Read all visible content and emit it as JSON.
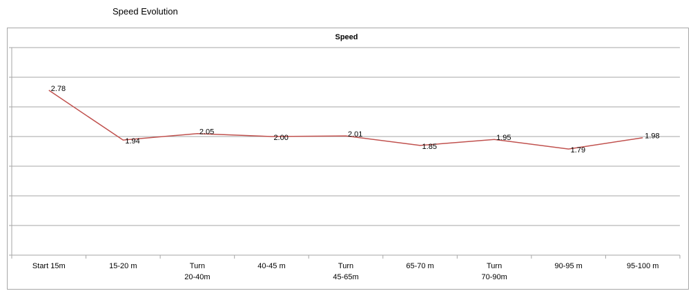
{
  "heading": "Speed Evolution",
  "chart_data": {
    "type": "line",
    "title": "Speed",
    "categories": [
      "Start 15m",
      "15-20 m",
      "Turn\n20-40m",
      "40-45 m",
      "Turn\n45-65m",
      "65-70 m",
      "Turn\n70-90m",
      "90-95 m",
      "95-100 m"
    ],
    "values": [
      2.78,
      1.94,
      2.05,
      2,
      2.01,
      1.85,
      1.95,
      1.79,
      1.98
    ],
    "value_labels": [
      "2.78",
      "1.94",
      "2.05",
      "2.00",
      "2.01",
      "1.85",
      "1.95",
      "1.79",
      "1.98"
    ],
    "color": "#c0504d",
    "ylim": [
      0,
      3.5
    ],
    "yticks": [
      0,
      0.5,
      1,
      1.5,
      2,
      2.5,
      3,
      3.5
    ],
    "grid": true,
    "show_ytick_labels": false
  }
}
